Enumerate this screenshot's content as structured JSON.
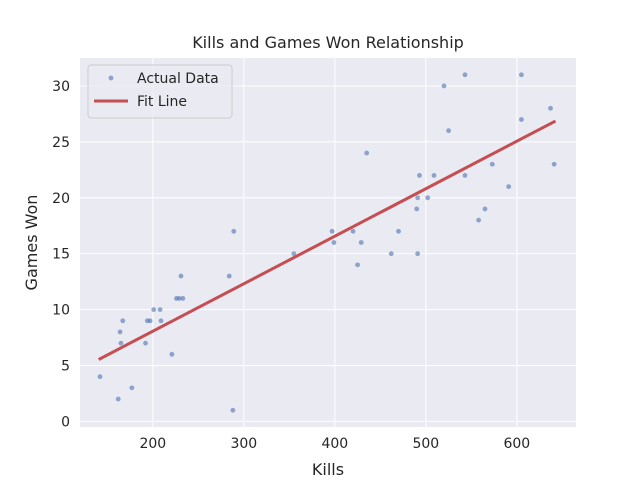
{
  "chart_data": {
    "type": "scatter",
    "title": "Kills and Games Won Relationship",
    "xlabel": "Kills",
    "ylabel": "Games Won",
    "xlim": [
      120,
      665
    ],
    "ylim": [
      -0.5,
      32.5
    ],
    "xticks": [
      200,
      300,
      400,
      500,
      600
    ],
    "yticks": [
      0,
      5,
      10,
      15,
      20,
      25,
      30
    ],
    "grid": true,
    "legend_placement": "top-left",
    "series": [
      {
        "name": "Actual Data",
        "kind": "points",
        "color": "#4c72b0",
        "points": [
          [
            142,
            4
          ],
          [
            162,
            2
          ],
          [
            164,
            8
          ],
          [
            165,
            7
          ],
          [
            167,
            9
          ],
          [
            177,
            3
          ],
          [
            192,
            7
          ],
          [
            194,
            9
          ],
          [
            197,
            9
          ],
          [
            201,
            10
          ],
          [
            208,
            10
          ],
          [
            209,
            9
          ],
          [
            221,
            6
          ],
          [
            226,
            11
          ],
          [
            229,
            11
          ],
          [
            231,
            13
          ],
          [
            233,
            11
          ],
          [
            284,
            13
          ],
          [
            288,
            1
          ],
          [
            289,
            17
          ],
          [
            355,
            15
          ],
          [
            397,
            17
          ],
          [
            399,
            16
          ],
          [
            420,
            17
          ],
          [
            425,
            14
          ],
          [
            429,
            16
          ],
          [
            435,
            24
          ],
          [
            462,
            15
          ],
          [
            470,
            17
          ],
          [
            490,
            19
          ],
          [
            491,
            15
          ],
          [
            491,
            20
          ],
          [
            493,
            22
          ],
          [
            502,
            20
          ],
          [
            509,
            22
          ],
          [
            520,
            30
          ],
          [
            525,
            26
          ],
          [
            543,
            22
          ],
          [
            543,
            31
          ],
          [
            558,
            18
          ],
          [
            565,
            19
          ],
          [
            573,
            23
          ],
          [
            591,
            21
          ],
          [
            605,
            27
          ],
          [
            605,
            31
          ],
          [
            637,
            28
          ],
          [
            641,
            23
          ]
        ]
      },
      {
        "name": "Fit Line",
        "kind": "line",
        "color": "#c44e52",
        "points": [
          [
            142,
            5.6
          ],
          [
            641,
            26.8
          ]
        ]
      }
    ]
  }
}
